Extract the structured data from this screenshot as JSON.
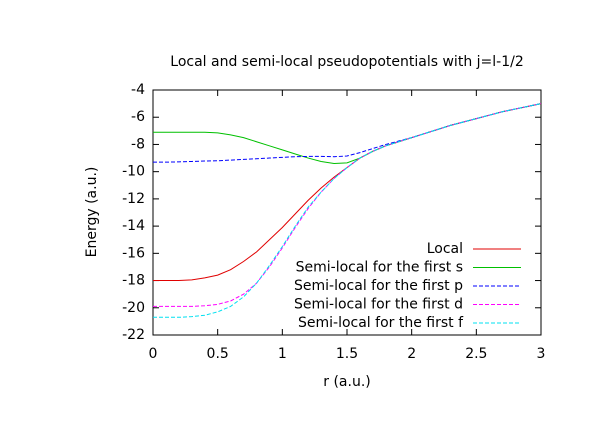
{
  "chart_data": {
    "type": "line",
    "title": "Local and semi-local pseudopotentials with j=l-1/2",
    "x_label": "r (a.u.)",
    "y_label": "Energy (a.u.)",
    "x": [
      0,
      0.1,
      0.2,
      0.3,
      0.4,
      0.5,
      0.6,
      0.7,
      0.8,
      0.9,
      1.0,
      1.1,
      1.2,
      1.3,
      1.4,
      1.5,
      1.6,
      1.7,
      1.8,
      1.9,
      2.0,
      2.1,
      2.2,
      2.3,
      2.4,
      2.5,
      2.6,
      2.7,
      2.8,
      2.9,
      3.0
    ],
    "series": [
      {
        "name": "Local",
        "color": "#e00000",
        "values": [
          -18,
          -18,
          -18,
          -17.95,
          -17.8,
          -17.6,
          -17.2,
          -16.6,
          -15.9,
          -15,
          -14.1,
          -13.1,
          -12.1,
          -11.2,
          -10.4,
          -9.7,
          -9.0,
          -8.5,
          -8.1,
          -7.8,
          -7.5,
          -7.2,
          -6.9,
          -6.6,
          -6.35,
          -6.1,
          -5.85,
          -5.6,
          -5.4,
          -5.2,
          -5.0
        ]
      },
      {
        "name": "Semi-local for the first s",
        "color": "#00c000",
        "values": [
          -7.1,
          -7.1,
          -7.1,
          -7.1,
          -7.1,
          -7.15,
          -7.3,
          -7.5,
          -7.8,
          -8.1,
          -8.4,
          -8.7,
          -9.0,
          -9.25,
          -9.4,
          -9.35,
          -9.0,
          -8.5,
          -8.1,
          -7.8,
          -7.5,
          -7.2,
          -6.9,
          -6.6,
          -6.35,
          -6.1,
          -5.85,
          -5.6,
          -5.4,
          -5.2,
          -5.0
        ]
      },
      {
        "name": "Semi-local for the first p",
        "color": "#0000ff",
        "values": [
          -9.3,
          -9.3,
          -9.28,
          -9.25,
          -9.22,
          -9.2,
          -9.15,
          -9.1,
          -9.05,
          -9.0,
          -8.95,
          -8.9,
          -8.88,
          -8.88,
          -8.9,
          -8.85,
          -8.6,
          -8.3,
          -8.0,
          -7.75,
          -7.5,
          -7.2,
          -6.9,
          -6.6,
          -6.35,
          -6.1,
          -5.85,
          -5.6,
          -5.4,
          -5.2,
          -5.0
        ]
      },
      {
        "name": "Semi-local for the first d",
        "color": "#ff00ff",
        "values": [
          -19.9,
          -19.9,
          -19.9,
          -19.9,
          -19.85,
          -19.75,
          -19.5,
          -19.0,
          -18.2,
          -17.0,
          -15.6,
          -14.1,
          -12.7,
          -11.5,
          -10.5,
          -9.7,
          -9.0,
          -8.5,
          -8.1,
          -7.8,
          -7.5,
          -7.2,
          -6.9,
          -6.6,
          -6.35,
          -6.1,
          -5.85,
          -5.6,
          -5.4,
          -5.2,
          -5.0
        ]
      },
      {
        "name": "Semi-local for the first f",
        "color": "#00e0f0",
        "values": [
          -20.7,
          -20.7,
          -20.7,
          -20.65,
          -20.55,
          -20.3,
          -19.9,
          -19.2,
          -18.2,
          -16.9,
          -15.5,
          -14.0,
          -12.6,
          -11.5,
          -10.5,
          -9.7,
          -9.0,
          -8.5,
          -8.1,
          -7.8,
          -7.5,
          -7.2,
          -6.9,
          -6.6,
          -6.35,
          -6.1,
          -5.85,
          -5.6,
          -5.4,
          -5.2,
          -5.0
        ]
      }
    ],
    "xlim": [
      0,
      3
    ],
    "xticks": [
      0,
      0.5,
      1,
      1.5,
      2,
      2.5,
      3
    ],
    "ylim": [
      -22,
      -4
    ],
    "yticks": [
      -22,
      -20,
      -18,
      -16,
      -14,
      -12,
      -10,
      -8,
      -6,
      -4
    ],
    "legend": "bottom-right"
  }
}
